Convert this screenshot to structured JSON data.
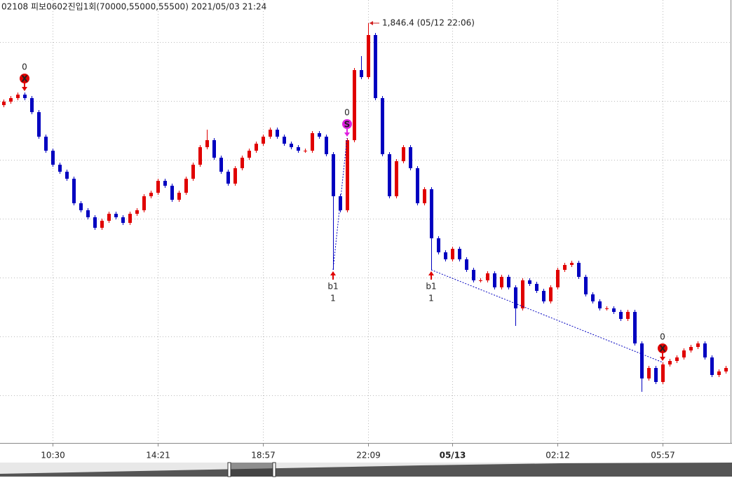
{
  "header": "02108 피보0602진입1회(70000,55000,55500)  2021/05/03 21:24",
  "chart_data": {
    "type": "candlestick",
    "up_color": "#e00000",
    "down_color": "#0000c0",
    "ylim": [
      1786.5,
      1849.7
    ],
    "xlim": [
      -0.5,
      103.9
    ],
    "xticks": [
      {
        "value": 7,
        "label": "10:30"
      },
      {
        "value": 22,
        "label": "14:21"
      },
      {
        "value": 37,
        "label": "18:57"
      },
      {
        "value": 52,
        "label": "22:09"
      },
      {
        "value": 64,
        "label": "05/13"
      },
      {
        "value": 79,
        "label": "02:12"
      },
      {
        "value": 94,
        "label": "05:57"
      }
    ],
    "grid": true,
    "ohlc": [
      [
        1834.7,
        1835.5,
        1834.4,
        1835.2
      ],
      [
        1835.2,
        1836.0,
        1834.9,
        1835.7
      ],
      [
        1835.7,
        1836.5,
        1835.4,
        1836.2
      ],
      [
        1836.2,
        1836.5,
        1835.4,
        1835.7
      ],
      [
        1835.7,
        1836.0,
        1833.4,
        1833.7
      ],
      [
        1833.7,
        1834.0,
        1829.9,
        1830.2
      ],
      [
        1830.2,
        1830.5,
        1827.9,
        1828.2
      ],
      [
        1828.2,
        1828.5,
        1825.9,
        1826.2
      ],
      [
        1826.2,
        1826.5,
        1824.9,
        1825.2
      ],
      [
        1825.2,
        1825.5,
        1823.9,
        1824.2
      ],
      [
        1824.2,
        1824.5,
        1820.4,
        1820.7
      ],
      [
        1820.7,
        1821.0,
        1819.4,
        1819.7
      ],
      [
        1819.7,
        1820.0,
        1818.4,
        1818.7
      ],
      [
        1818.7,
        1819.0,
        1816.9,
        1817.2
      ],
      [
        1817.2,
        1818.5,
        1816.9,
        1818.2
      ],
      [
        1818.2,
        1819.5,
        1817.9,
        1819.2
      ],
      [
        1819.2,
        1819.5,
        1818.4,
        1818.7
      ],
      [
        1818.7,
        1819.0,
        1817.6,
        1817.9
      ],
      [
        1817.9,
        1819.5,
        1817.6,
        1819.2
      ],
      [
        1819.2,
        1820.0,
        1818.9,
        1819.7
      ],
      [
        1819.7,
        1822.0,
        1819.4,
        1821.7
      ],
      [
        1821.7,
        1822.5,
        1821.4,
        1822.2
      ],
      [
        1822.2,
        1824.2,
        1821.9,
        1823.9
      ],
      [
        1823.9,
        1824.2,
        1822.9,
        1823.2
      ],
      [
        1823.2,
        1823.5,
        1820.9,
        1821.2
      ],
      [
        1821.2,
        1822.5,
        1820.9,
        1822.2
      ],
      [
        1822.2,
        1824.5,
        1821.9,
        1824.2
      ],
      [
        1824.2,
        1826.5,
        1823.9,
        1826.2
      ],
      [
        1826.2,
        1829.0,
        1825.9,
        1828.7
      ],
      [
        1828.7,
        1831.2,
        1828.4,
        1829.7
      ],
      [
        1829.7,
        1830.0,
        1826.9,
        1827.2
      ],
      [
        1827.2,
        1827.5,
        1824.9,
        1825.2
      ],
      [
        1825.2,
        1825.5,
        1823.2,
        1823.5
      ],
      [
        1823.5,
        1826.0,
        1823.2,
        1825.7
      ],
      [
        1825.7,
        1827.5,
        1825.4,
        1827.2
      ],
      [
        1827.2,
        1828.5,
        1826.9,
        1828.2
      ],
      [
        1828.2,
        1829.5,
        1827.9,
        1829.2
      ],
      [
        1829.2,
        1830.5,
        1828.9,
        1830.2
      ],
      [
        1830.2,
        1831.5,
        1829.9,
        1831.2
      ],
      [
        1831.2,
        1831.5,
        1829.9,
        1830.2
      ],
      [
        1830.2,
        1830.5,
        1828.9,
        1829.2
      ],
      [
        1829.2,
        1829.5,
        1828.4,
        1828.7
      ],
      [
        1828.7,
        1829.0,
        1827.9,
        1828.2
      ],
      [
        1828.2,
        1828.5,
        1827.9,
        1828.2
      ],
      [
        1828.2,
        1831.0,
        1827.9,
        1830.7
      ],
      [
        1830.7,
        1831.0,
        1829.9,
        1830.2
      ],
      [
        1830.2,
        1830.5,
        1827.4,
        1827.7
      ],
      [
        1827.7,
        1828.0,
        1811.2,
        1821.7
      ],
      [
        1821.7,
        1822.0,
        1819.4,
        1819.7
      ],
      [
        1819.7,
        1830.0,
        1819.4,
        1829.7
      ],
      [
        1829.7,
        1840.0,
        1829.4,
        1839.7
      ],
      [
        1839.7,
        1841.7,
        1838.4,
        1838.7
      ],
      [
        1838.7,
        1846.4,
        1838.4,
        1844.7
      ],
      [
        1844.7,
        1845.0,
        1835.4,
        1835.7
      ],
      [
        1835.7,
        1836.0,
        1827.4,
        1827.7
      ],
      [
        1827.7,
        1828.0,
        1821.4,
        1821.7
      ],
      [
        1821.7,
        1827.0,
        1821.4,
        1826.7
      ],
      [
        1826.7,
        1829.0,
        1826.4,
        1828.7
      ],
      [
        1828.7,
        1829.0,
        1825.4,
        1825.7
      ],
      [
        1825.7,
        1826.0,
        1820.4,
        1820.7
      ],
      [
        1820.7,
        1823.0,
        1820.4,
        1822.7
      ],
      [
        1822.7,
        1823.0,
        1811.2,
        1815.7
      ],
      [
        1815.7,
        1816.0,
        1813.4,
        1813.7
      ],
      [
        1813.7,
        1814.0,
        1812.4,
        1812.7
      ],
      [
        1812.7,
        1814.5,
        1812.4,
        1814.2
      ],
      [
        1814.2,
        1814.5,
        1812.4,
        1812.7
      ],
      [
        1812.7,
        1813.0,
        1810.9,
        1811.2
      ],
      [
        1811.2,
        1811.5,
        1809.4,
        1809.7
      ],
      [
        1809.7,
        1810.0,
        1809.4,
        1809.7
      ],
      [
        1809.7,
        1811.0,
        1809.4,
        1810.7
      ],
      [
        1810.7,
        1811.0,
        1808.4,
        1808.7
      ],
      [
        1808.7,
        1810.5,
        1808.4,
        1810.2
      ],
      [
        1810.2,
        1810.5,
        1808.4,
        1808.7
      ],
      [
        1808.7,
        1809.0,
        1803.2,
        1805.7
      ],
      [
        1805.7,
        1810.0,
        1805.4,
        1809.7
      ],
      [
        1809.7,
        1810.0,
        1808.9,
        1809.2
      ],
      [
        1809.2,
        1809.5,
        1807.9,
        1808.2
      ],
      [
        1808.2,
        1808.5,
        1806.4,
        1806.7
      ],
      [
        1806.7,
        1809.0,
        1806.4,
        1808.7
      ],
      [
        1808.7,
        1811.5,
        1808.4,
        1811.2
      ],
      [
        1811.2,
        1812.2,
        1810.9,
        1811.9
      ],
      [
        1811.9,
        1812.5,
        1811.6,
        1812.2
      ],
      [
        1812.2,
        1812.5,
        1809.9,
        1810.2
      ],
      [
        1810.2,
        1810.5,
        1807.4,
        1807.7
      ],
      [
        1807.7,
        1808.0,
        1806.4,
        1806.7
      ],
      [
        1806.7,
        1807.0,
        1805.4,
        1805.7
      ],
      [
        1805.7,
        1806.0,
        1805.4,
        1805.7
      ],
      [
        1805.7,
        1806.0,
        1804.9,
        1805.2
      ],
      [
        1805.2,
        1805.5,
        1803.9,
        1804.2
      ],
      [
        1804.2,
        1805.5,
        1803.9,
        1805.2
      ],
      [
        1805.2,
        1805.5,
        1800.4,
        1800.7
      ],
      [
        1800.7,
        1801.0,
        1793.8,
        1795.7
      ],
      [
        1795.7,
        1797.5,
        1795.4,
        1797.2
      ],
      [
        1797.2,
        1797.5,
        1794.9,
        1795.2
      ],
      [
        1795.2,
        1798.0,
        1794.9,
        1797.7
      ],
      [
        1797.7,
        1798.5,
        1797.4,
        1798.2
      ],
      [
        1798.2,
        1799.0,
        1797.9,
        1798.7
      ],
      [
        1798.7,
        1800.0,
        1798.4,
        1799.7
      ],
      [
        1799.7,
        1800.5,
        1799.4,
        1800.2
      ],
      [
        1800.2,
        1801.0,
        1799.9,
        1800.7
      ],
      [
        1800.7,
        1801.0,
        1798.4,
        1798.7
      ],
      [
        1798.7,
        1799.0,
        1795.9,
        1796.2
      ],
      [
        1796.2,
        1797.0,
        1795.9,
        1796.7
      ],
      [
        1796.7,
        1797.5,
        1796.4,
        1797.2
      ]
    ],
    "high_annotation": {
      "candle": 52,
      "text": "1,846.4 (05/12 22:06)",
      "color": "#d02020"
    },
    "signals": [
      {
        "candle": 3,
        "kind": "sell",
        "above": "0",
        "icon": "X",
        "color": "#e00000"
      },
      {
        "candle": 47,
        "kind": "buy",
        "name": "b1",
        "below": "1",
        "color": "#e00000"
      },
      {
        "candle": 49,
        "kind": "sell",
        "above": "0",
        "icon": "S",
        "color": "#e020e0"
      },
      {
        "candle": 61,
        "kind": "buy",
        "name": "b1",
        "below": "1",
        "color": "#e00000"
      },
      {
        "candle": 94,
        "kind": "sell",
        "above": "0",
        "icon": "X",
        "color": "#e00000"
      }
    ]
  }
}
